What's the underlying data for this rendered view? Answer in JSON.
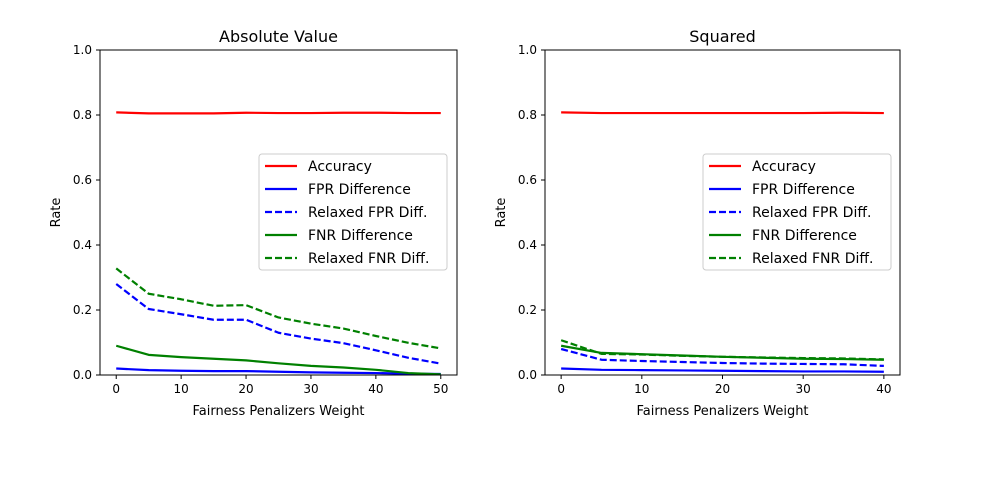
{
  "chart_data": [
    {
      "type": "line",
      "title": "Absolute Value",
      "xlabel": "Fairness Penalizers Weight",
      "ylabel": "Rate",
      "xlim": [
        -2.5,
        52.5
      ],
      "ylim": [
        0.0,
        1.0
      ],
      "xticks": [
        0,
        10,
        20,
        30,
        40,
        50
      ],
      "xtick_labels": [
        "0",
        "10",
        "20",
        "30",
        "40",
        "50"
      ],
      "yticks": [
        0.0,
        0.2,
        0.4,
        0.6,
        0.8,
        1.0
      ],
      "ytick_labels": [
        "0.0",
        "0.2",
        "0.4",
        "0.6",
        "0.8",
        "1.0"
      ],
      "grid": false,
      "legend_position": "center-right",
      "x": [
        0,
        5,
        10,
        15,
        20,
        25,
        30,
        35,
        40,
        45,
        50
      ],
      "series": [
        {
          "name": "Accuracy",
          "color": "#ff0000",
          "dash": "solid",
          "values": [
            0.808,
            0.805,
            0.805,
            0.805,
            0.807,
            0.806,
            0.806,
            0.807,
            0.807,
            0.806,
            0.806
          ]
        },
        {
          "name": "FPR Difference",
          "color": "#0000ff",
          "dash": "solid",
          "values": [
            0.02,
            0.015,
            0.013,
            0.012,
            0.012,
            0.01,
            0.008,
            0.007,
            0.006,
            0.004,
            0.003
          ]
        },
        {
          "name": "Relaxed FPR Diff.",
          "color": "#0000ff",
          "dash": "dashed",
          "values": [
            0.28,
            0.203,
            0.187,
            0.17,
            0.17,
            0.13,
            0.112,
            0.098,
            0.076,
            0.053,
            0.035
          ]
        },
        {
          "name": "FNR Difference",
          "color": "#008000",
          "dash": "solid",
          "values": [
            0.09,
            0.062,
            0.055,
            0.05,
            0.045,
            0.036,
            0.028,
            0.023,
            0.016,
            0.006,
            0.002
          ]
        },
        {
          "name": "Relaxed FNR Diff.",
          "color": "#008000",
          "dash": "dashed",
          "values": [
            0.328,
            0.25,
            0.233,
            0.213,
            0.215,
            0.177,
            0.158,
            0.143,
            0.12,
            0.099,
            0.082
          ]
        }
      ]
    },
    {
      "type": "line",
      "title": "Squared",
      "xlabel": "Fairness Penalizers Weight",
      "ylabel": "Rate",
      "xlim": [
        -2.0,
        42.0
      ],
      "ylim": [
        0.0,
        1.0
      ],
      "xticks": [
        0,
        10,
        20,
        30,
        40
      ],
      "xtick_labels": [
        "0",
        "10",
        "20",
        "30",
        "40"
      ],
      "yticks": [
        0.0,
        0.2,
        0.4,
        0.6,
        0.8,
        1.0
      ],
      "ytick_labels": [
        "0.0",
        "0.2",
        "0.4",
        "0.6",
        "0.8",
        "1.0"
      ],
      "grid": false,
      "legend_position": "center-right",
      "x": [
        0,
        5,
        10,
        15,
        20,
        25,
        30,
        35,
        40
      ],
      "series": [
        {
          "name": "Accuracy",
          "color": "#ff0000",
          "dash": "solid",
          "values": [
            0.808,
            0.806,
            0.806,
            0.806,
            0.806,
            0.806,
            0.806,
            0.807,
            0.806
          ]
        },
        {
          "name": "FPR Difference",
          "color": "#0000ff",
          "dash": "solid",
          "values": [
            0.02,
            0.016,
            0.015,
            0.014,
            0.013,
            0.012,
            0.011,
            0.011,
            0.01
          ]
        },
        {
          "name": "Relaxed FPR Diff.",
          "color": "#0000ff",
          "dash": "dashed",
          "values": [
            0.08,
            0.047,
            0.043,
            0.04,
            0.037,
            0.035,
            0.034,
            0.033,
            0.028
          ]
        },
        {
          "name": "FNR Difference",
          "color": "#008000",
          "dash": "solid",
          "values": [
            0.09,
            0.068,
            0.064,
            0.06,
            0.056,
            0.053,
            0.05,
            0.049,
            0.047
          ]
        },
        {
          "name": "Relaxed FNR Diff.",
          "color": "#008000",
          "dash": "dashed",
          "values": [
            0.107,
            0.065,
            0.063,
            0.059,
            0.056,
            0.054,
            0.052,
            0.051,
            0.048
          ]
        }
      ]
    }
  ]
}
